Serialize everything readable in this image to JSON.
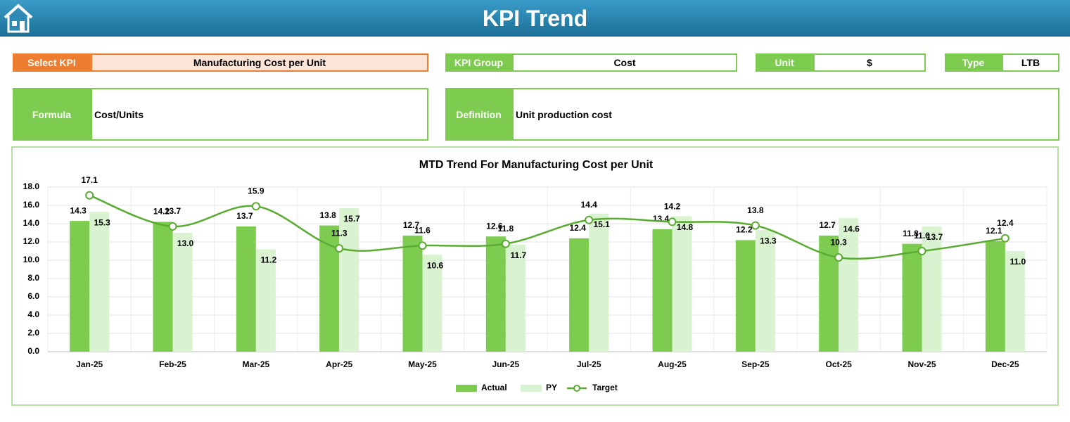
{
  "header": {
    "title": "KPI Trend"
  },
  "fields": {
    "select_kpi": {
      "label": "Select KPI",
      "value": "Manufacturing Cost per Unit"
    },
    "kpi_group": {
      "label": "KPI Group",
      "value": "Cost"
    },
    "unit": {
      "label": "Unit",
      "value": "$"
    },
    "type": {
      "label": "Type",
      "value": "LTB"
    },
    "formula": {
      "label": "Formula",
      "value": "Cost/Units"
    },
    "definition": {
      "label": "Definition",
      "value": "Unit production cost"
    }
  },
  "chart_data": {
    "type": "bar",
    "title": "MTD Trend For Manufacturing Cost per Unit",
    "categories": [
      "Jan-25",
      "Feb-25",
      "Mar-25",
      "Apr-25",
      "May-25",
      "Jun-25",
      "Jul-25",
      "Aug-25",
      "Sep-25",
      "Oct-25",
      "Nov-25",
      "Dec-25"
    ],
    "series": [
      {
        "name": "Actual",
        "color": "#7dcc4f",
        "type": "bar",
        "values": [
          14.3,
          14.2,
          13.7,
          13.8,
          12.7,
          12.6,
          12.4,
          13.4,
          12.2,
          12.7,
          11.8,
          12.1
        ],
        "value_labels": [
          "14.3",
          "14.2",
          "13.7",
          "13.8",
          "12.7",
          "12.6",
          "12.4",
          "13.4",
          "12.2",
          "12.7",
          "11.8",
          "12.1"
        ]
      },
      {
        "name": "PY",
        "color": "#d9f2d0",
        "type": "bar",
        "values": [
          15.3,
          13.0,
          11.2,
          15.7,
          10.6,
          11.7,
          15.1,
          14.8,
          13.3,
          14.6,
          13.7,
          11.0
        ],
        "value_labels": [
          "15.3",
          "13.0",
          "11.2",
          "15.7",
          "10.6",
          "11.7",
          "15.1",
          "14.8",
          "13.3",
          "14.6",
          "13.7",
          "11.0"
        ]
      },
      {
        "name": "Target",
        "color": "#5aab32",
        "type": "line",
        "values": [
          17.1,
          13.7,
          15.9,
          11.3,
          11.6,
          11.8,
          14.4,
          14.2,
          13.8,
          10.3,
          11.0,
          12.4
        ],
        "value_labels": [
          "17.1",
          "13.7",
          "15.9",
          "11.3",
          "11.6",
          "11.8",
          "14.4",
          "14.2",
          "13.8",
          "10.3",
          "11.0",
          "12.4"
        ]
      }
    ],
    "ylim": [
      0,
      18
    ],
    "yticks": [
      {
        "value": 0,
        "label": "0.0"
      },
      {
        "value": 2,
        "label": "2.0"
      },
      {
        "value": 4,
        "label": "4.0"
      },
      {
        "value": 6,
        "label": "6.0"
      },
      {
        "value": 8,
        "label": "8.0"
      },
      {
        "value": 10,
        "label": "10.0"
      },
      {
        "value": 12,
        "label": "12.0"
      },
      {
        "value": 14,
        "label": "14.0"
      },
      {
        "value": 16,
        "label": "16.0"
      },
      {
        "value": 18,
        "label": "18.0"
      }
    ],
    "grid": true,
    "legend": "bottom"
  }
}
